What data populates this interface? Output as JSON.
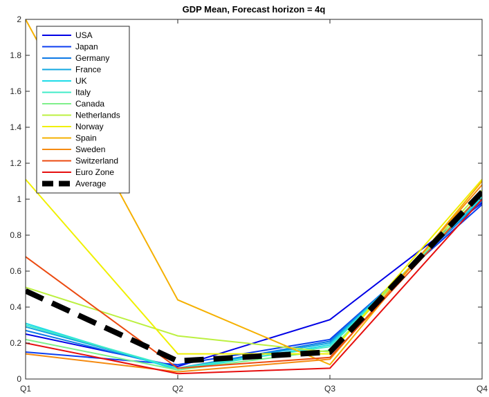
{
  "chart_data": {
    "type": "line",
    "title": "GDP Mean, Forecast horizon = 4q",
    "xlabel": "",
    "ylabel": "",
    "categories": [
      "Q1",
      "Q2",
      "Q3",
      "Q4"
    ],
    "ylim": [
      0,
      2
    ],
    "yticks": [
      0,
      0.2,
      0.4,
      0.6,
      0.8,
      1,
      1.2,
      1.4,
      1.6,
      1.8,
      2
    ],
    "ytick_labels": [
      "0",
      "0.2",
      "0.4",
      "0.6",
      "0.8",
      "1",
      "1.2",
      "1.4",
      "1.6",
      "1.8",
      "2"
    ],
    "grid": false,
    "legend_position": "top-left",
    "series": [
      {
        "name": "USA",
        "color": "#0000E6",
        "values": [
          0.25,
          0.07,
          0.33,
          0.98
        ]
      },
      {
        "name": "Japan",
        "color": "#0B3EF0",
        "values": [
          0.15,
          0.08,
          0.22,
          0.97
        ]
      },
      {
        "name": "Germany",
        "color": "#0C78E6",
        "values": [
          0.27,
          0.06,
          0.21,
          0.99
        ]
      },
      {
        "name": "France",
        "color": "#12A8E0",
        "values": [
          0.29,
          0.06,
          0.2,
          1.0
        ]
      },
      {
        "name": "UK",
        "color": "#1EDCE8",
        "values": [
          0.31,
          0.05,
          0.19,
          1.01
        ]
      },
      {
        "name": "Italy",
        "color": "#40EBC8",
        "values": [
          0.3,
          0.06,
          0.18,
          1.02
        ]
      },
      {
        "name": "Canada",
        "color": "#7EF08A",
        "values": [
          0.22,
          0.05,
          0.16,
          1.03
        ]
      },
      {
        "name": "Netherlands",
        "color": "#BCF040",
        "values": [
          0.51,
          0.24,
          0.15,
          1.05
        ]
      },
      {
        "name": "Norway",
        "color": "#F0F000",
        "values": [
          1.11,
          0.14,
          0.14,
          1.11
        ]
      },
      {
        "name": "Spain",
        "color": "#F5B000",
        "values": [
          2.0,
          0.44,
          0.08,
          1.1
        ]
      },
      {
        "name": "Sweden",
        "color": "#F58A10",
        "values": [
          0.14,
          0.04,
          0.11,
          1.08
        ]
      },
      {
        "name": "Switzerland",
        "color": "#EB4A10",
        "values": [
          0.68,
          0.06,
          0.12,
          1.03
        ]
      },
      {
        "name": "Euro Zone",
        "color": "#E60E0E",
        "values": [
          0.2,
          0.03,
          0.06,
          1.0
        ]
      },
      {
        "name": "Average",
        "color": "#000000",
        "dashed": true,
        "values": [
          0.49,
          0.1,
          0.15,
          1.04
        ]
      }
    ]
  }
}
